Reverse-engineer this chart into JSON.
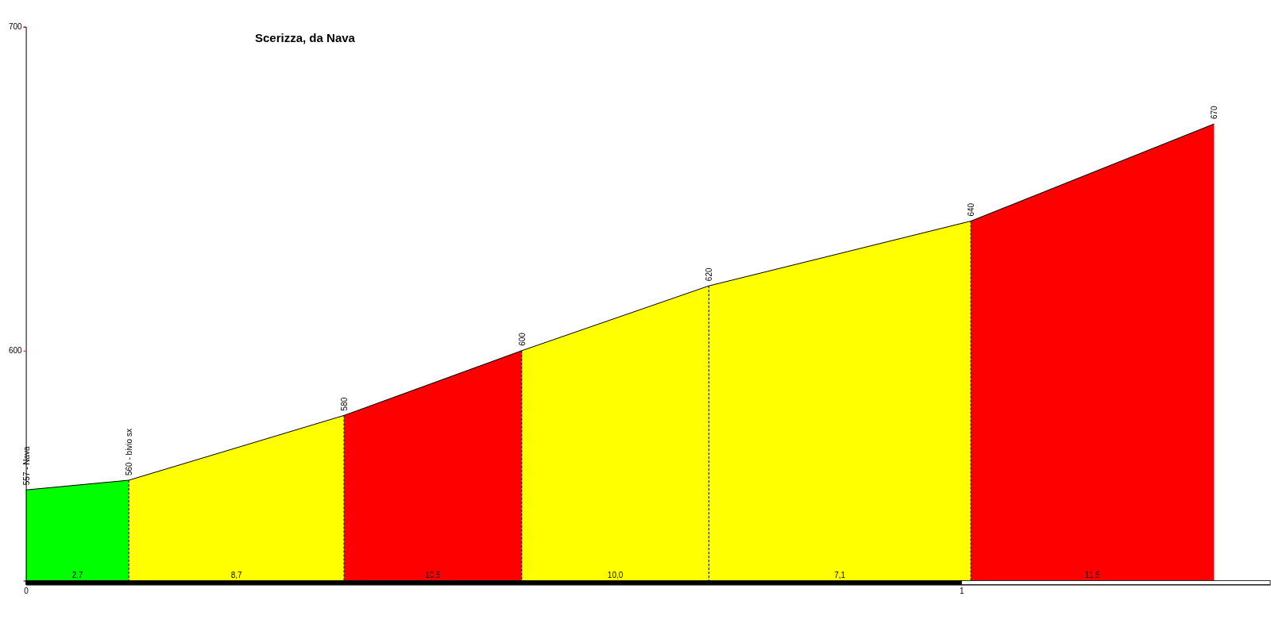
{
  "chart_data": {
    "type": "area",
    "title": "Scerizza, da Nava",
    "xlim": [
      0,
      1.33
    ],
    "xticks": [
      0,
      1
    ],
    "ylim": [
      529,
      700
    ],
    "yticks": [
      600,
      700
    ],
    "series": [
      {
        "color": "#00ff00",
        "x": [
          0,
          0.11
        ],
        "values": [
          557,
          560
        ]
      },
      {
        "color": "#ffff00",
        "x": [
          0.11,
          0.34
        ],
        "values": [
          560,
          580
        ]
      },
      {
        "color": "#ff0000",
        "x": [
          0.34,
          0.53
        ],
        "values": [
          580,
          600
        ]
      },
      {
        "color": "#ffff00",
        "x": [
          0.53,
          0.73
        ],
        "values": [
          600,
          620
        ]
      },
      {
        "color": "#ffff00",
        "x": [
          0.73,
          1.01
        ],
        "values": [
          620,
          640
        ]
      },
      {
        "color": "#ff0000",
        "x": [
          1.01,
          1.27
        ],
        "values": [
          640,
          670
        ]
      }
    ],
    "annotations": [
      {
        "text": "557 - Nava",
        "x": 0,
        "y": 557
      },
      {
        "text": "560 - bivio sx",
        "x": 0.11,
        "y": 560
      },
      {
        "text": "580",
        "x": 0.34,
        "y": 580
      },
      {
        "text": "600",
        "x": 0.53,
        "y": 600
      },
      {
        "text": "620",
        "x": 0.73,
        "y": 620
      },
      {
        "text": "640",
        "x": 1.01,
        "y": 640
      },
      {
        "text": "670",
        "x": 1.27,
        "y": 670
      },
      {
        "text": "2,7",
        "x": 0.055,
        "y": 529
      },
      {
        "text": "8,7",
        "x": 0.225,
        "y": 529
      },
      {
        "text": "10,5",
        "x": 0.435,
        "y": 529
      },
      {
        "text": "10,0",
        "x": 0.63,
        "y": 529
      },
      {
        "text": "7,1",
        "x": 0.87,
        "y": 529
      },
      {
        "text": "11,5",
        "x": 1.14,
        "y": 529
      }
    ]
  }
}
